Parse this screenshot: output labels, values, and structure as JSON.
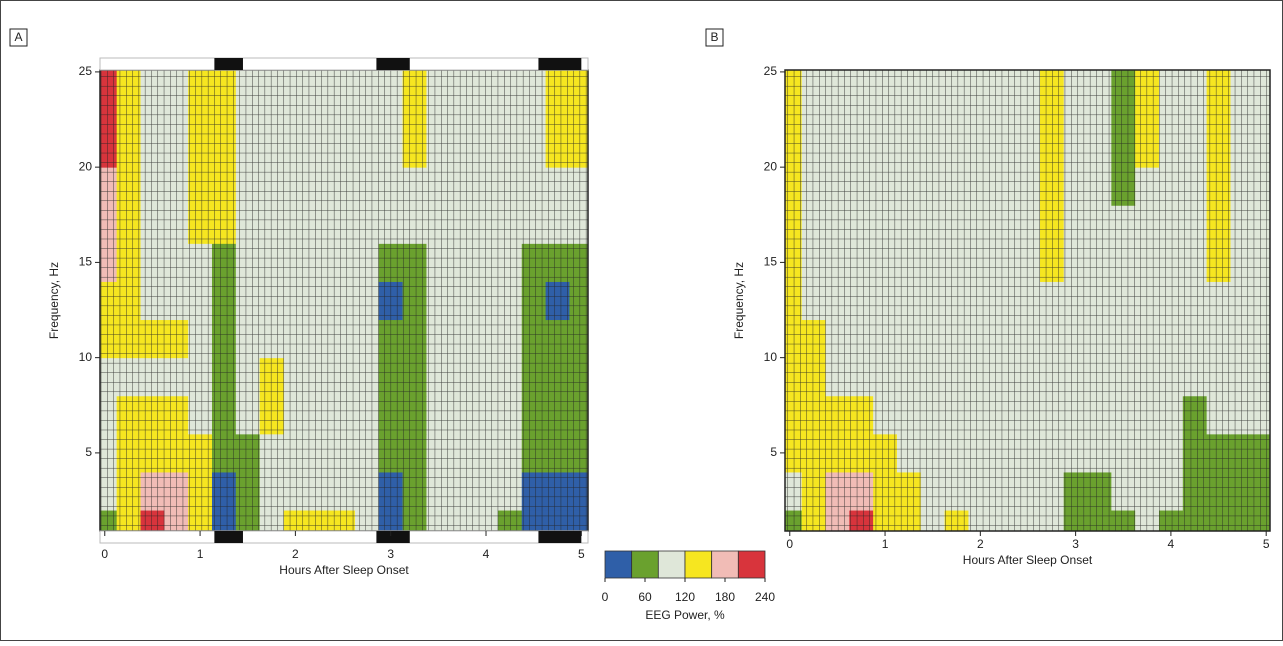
{
  "chart_data": [
    {
      "type": "heatmap",
      "panel": "A",
      "x_label": "Hours After Sleep Onset",
      "y_label": "Frequency, Hz",
      "x": [
        0,
        0.25,
        0.5,
        0.75,
        1,
        1.25,
        1.5,
        1.75,
        2,
        2.25,
        2.5,
        2.75,
        3,
        3.25,
        3.5,
        3.75,
        4,
        4.25,
        4.5,
        4.75,
        5
      ],
      "y": [
        1,
        3,
        5,
        7,
        9,
        11,
        13,
        15,
        17,
        19,
        21,
        23,
        25
      ],
      "values": [
        [
          60,
          140,
          210,
          170,
          140,
          20,
          60,
          100,
          130,
          130,
          130,
          100,
          20,
          60,
          100,
          100,
          100,
          60,
          20,
          20,
          20
        ],
        [
          100,
          140,
          180,
          180,
          140,
          20,
          60,
          100,
          100,
          100,
          100,
          100,
          20,
          60,
          100,
          100,
          100,
          100,
          20,
          20,
          20
        ],
        [
          100,
          140,
          140,
          140,
          140,
          60,
          60,
          100,
          100,
          100,
          100,
          100,
          60,
          60,
          100,
          100,
          100,
          100,
          60,
          60,
          60
        ],
        [
          100,
          140,
          140,
          140,
          100,
          60,
          100,
          140,
          100,
          100,
          100,
          100,
          60,
          60,
          100,
          100,
          100,
          100,
          60,
          60,
          60
        ],
        [
          100,
          100,
          100,
          100,
          100,
          60,
          100,
          140,
          100,
          100,
          100,
          100,
          60,
          60,
          100,
          100,
          100,
          100,
          60,
          60,
          60
        ],
        [
          140,
          140,
          140,
          140,
          100,
          60,
          100,
          100,
          100,
          100,
          100,
          100,
          60,
          60,
          100,
          100,
          100,
          100,
          60,
          60,
          60
        ],
        [
          140,
          140,
          100,
          100,
          100,
          60,
          100,
          100,
          100,
          100,
          100,
          100,
          20,
          60,
          100,
          100,
          100,
          100,
          60,
          20,
          60
        ],
        [
          180,
          140,
          100,
          100,
          100,
          60,
          100,
          100,
          100,
          100,
          100,
          100,
          60,
          60,
          100,
          100,
          100,
          100,
          60,
          60,
          60
        ],
        [
          180,
          140,
          100,
          100,
          140,
          140,
          100,
          100,
          100,
          100,
          100,
          100,
          100,
          100,
          100,
          100,
          100,
          100,
          100,
          100,
          100
        ],
        [
          180,
          140,
          100,
          100,
          140,
          140,
          100,
          100,
          100,
          100,
          100,
          100,
          100,
          100,
          100,
          100,
          100,
          100,
          100,
          100,
          100
        ],
        [
          210,
          140,
          100,
          100,
          140,
          140,
          100,
          100,
          100,
          100,
          100,
          100,
          100,
          140,
          100,
          100,
          100,
          100,
          100,
          140,
          140
        ],
        [
          210,
          140,
          100,
          100,
          140,
          140,
          100,
          100,
          100,
          100,
          100,
          100,
          100,
          140,
          100,
          100,
          100,
          100,
          100,
          140,
          140
        ],
        [
          210,
          140,
          100,
          100,
          140,
          140,
          100,
          100,
          100,
          100,
          100,
          100,
          100,
          140,
          100,
          100,
          100,
          100,
          100,
          140,
          140
        ]
      ],
      "stage_bars": [
        [
          1.15,
          1.45
        ],
        [
          2.85,
          3.2
        ],
        [
          4.55,
          5.0
        ]
      ],
      "xlim": [
        -0.05,
        5.07
      ],
      "ylim": [
        0.9,
        25.1
      ],
      "xticks": [
        0,
        1,
        2,
        3,
        4,
        5
      ],
      "yticks": [
        5,
        10,
        15,
        20,
        25
      ]
    },
    {
      "type": "heatmap",
      "panel": "B",
      "x_label": "Hours After Sleep Onset",
      "y_label": "Frequency, Hz",
      "x": [
        0,
        0.25,
        0.5,
        0.75,
        1,
        1.25,
        1.5,
        1.75,
        2,
        2.25,
        2.5,
        2.75,
        3,
        3.25,
        3.5,
        3.75,
        4,
        4.25,
        4.5,
        4.75,
        5
      ],
      "y": [
        1,
        3,
        5,
        7,
        9,
        11,
        13,
        15,
        17,
        19,
        21,
        23,
        25
      ],
      "values": [
        [
          60,
          140,
          180,
          210,
          140,
          140,
          100,
          140,
          100,
          100,
          100,
          100,
          60,
          60,
          60,
          100,
          60,
          60,
          60,
          60,
          60
        ],
        [
          100,
          140,
          180,
          180,
          140,
          140,
          100,
          100,
          100,
          100,
          100,
          100,
          60,
          60,
          100,
          100,
          100,
          60,
          60,
          60,
          60
        ],
        [
          140,
          140,
          140,
          140,
          140,
          100,
          100,
          100,
          100,
          100,
          100,
          100,
          100,
          100,
          100,
          100,
          100,
          60,
          60,
          60,
          60
        ],
        [
          140,
          140,
          140,
          140,
          100,
          100,
          100,
          100,
          100,
          100,
          100,
          100,
          100,
          100,
          100,
          100,
          100,
          60,
          100,
          100,
          100
        ],
        [
          140,
          140,
          100,
          100,
          100,
          100,
          100,
          100,
          100,
          100,
          100,
          100,
          100,
          100,
          100,
          100,
          100,
          100,
          100,
          100,
          100
        ],
        [
          140,
          140,
          100,
          100,
          100,
          100,
          100,
          100,
          100,
          100,
          100,
          100,
          100,
          100,
          100,
          100,
          100,
          100,
          100,
          100,
          100
        ],
        [
          140,
          100,
          100,
          100,
          100,
          100,
          100,
          100,
          100,
          100,
          100,
          100,
          100,
          100,
          100,
          100,
          100,
          100,
          100,
          100,
          100
        ],
        [
          140,
          100,
          100,
          100,
          100,
          100,
          100,
          100,
          100,
          100,
          100,
          140,
          100,
          100,
          100,
          100,
          100,
          100,
          140,
          100,
          100
        ],
        [
          140,
          100,
          100,
          100,
          100,
          100,
          100,
          100,
          100,
          100,
          100,
          140,
          100,
          100,
          100,
          100,
          100,
          100,
          140,
          100,
          100
        ],
        [
          140,
          100,
          100,
          100,
          100,
          100,
          100,
          100,
          100,
          100,
          100,
          140,
          100,
          100,
          60,
          100,
          100,
          100,
          140,
          100,
          100
        ],
        [
          140,
          100,
          100,
          100,
          100,
          100,
          100,
          100,
          100,
          100,
          100,
          140,
          100,
          100,
          60,
          140,
          100,
          100,
          140,
          100,
          100
        ],
        [
          140,
          100,
          100,
          100,
          100,
          100,
          100,
          100,
          100,
          100,
          100,
          140,
          100,
          100,
          60,
          140,
          100,
          100,
          140,
          100,
          100
        ],
        [
          140,
          100,
          100,
          100,
          100,
          100,
          100,
          100,
          100,
          100,
          100,
          140,
          100,
          100,
          60,
          140,
          100,
          100,
          140,
          100,
          100
        ]
      ],
      "xlim": [
        -0.05,
        5.04
      ],
      "ylim": [
        0.9,
        25.1
      ],
      "xticks": [
        0,
        1,
        2,
        3,
        4,
        5
      ],
      "yticks": [
        5,
        10,
        15,
        20,
        25
      ]
    }
  ],
  "colorbar": {
    "label": "EEG Power, %",
    "bins": [
      0,
      40,
      80,
      120,
      160,
      200,
      240
    ],
    "colors": [
      "#2f5fa8",
      "#6aa12e",
      "#dfe7d9",
      "#f6e620",
      "#f1bcb6",
      "#d8343c"
    ],
    "ticks": [
      0,
      60,
      120,
      180,
      240
    ]
  }
}
